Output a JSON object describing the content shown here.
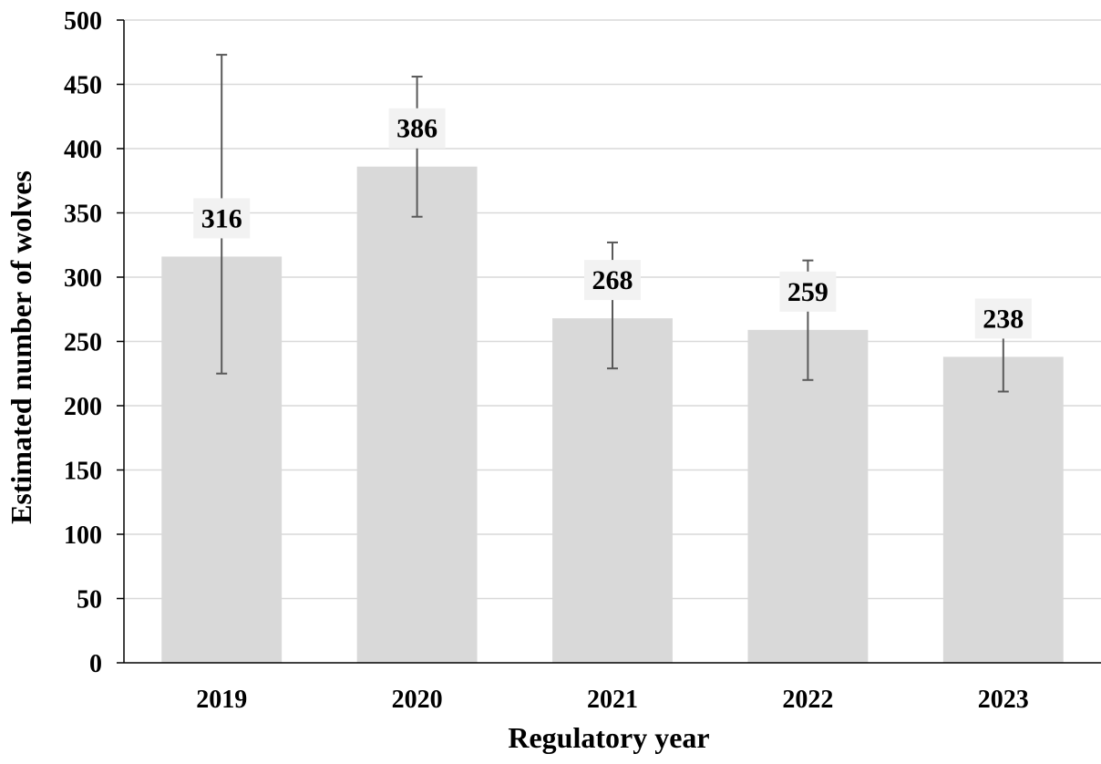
{
  "chart_data": {
    "type": "bar",
    "title": "",
    "xlabel": "Regulatory year",
    "ylabel": "Estimated number of wolves",
    "ylim": [
      0,
      500
    ],
    "yticks": [
      0,
      50,
      100,
      150,
      200,
      250,
      300,
      350,
      400,
      450,
      500
    ],
    "grid": true,
    "legend": "none",
    "categories": [
      "2019",
      "2020",
      "2021",
      "2022",
      "2023"
    ],
    "values": [
      316,
      386,
      268,
      259,
      238
    ],
    "data_labels": [
      "316",
      "386",
      "268",
      "259",
      "238"
    ],
    "error_bars": {
      "upper": [
        473,
        456,
        327,
        313,
        277
      ],
      "lower": [
        225,
        347,
        229,
        220,
        211
      ]
    },
    "colors": {
      "bar": "#d9d9d9",
      "grid": "#d9d9d9",
      "axis": "#000000",
      "error_bar": "#595959",
      "label_background": "#f2f2f2"
    }
  }
}
